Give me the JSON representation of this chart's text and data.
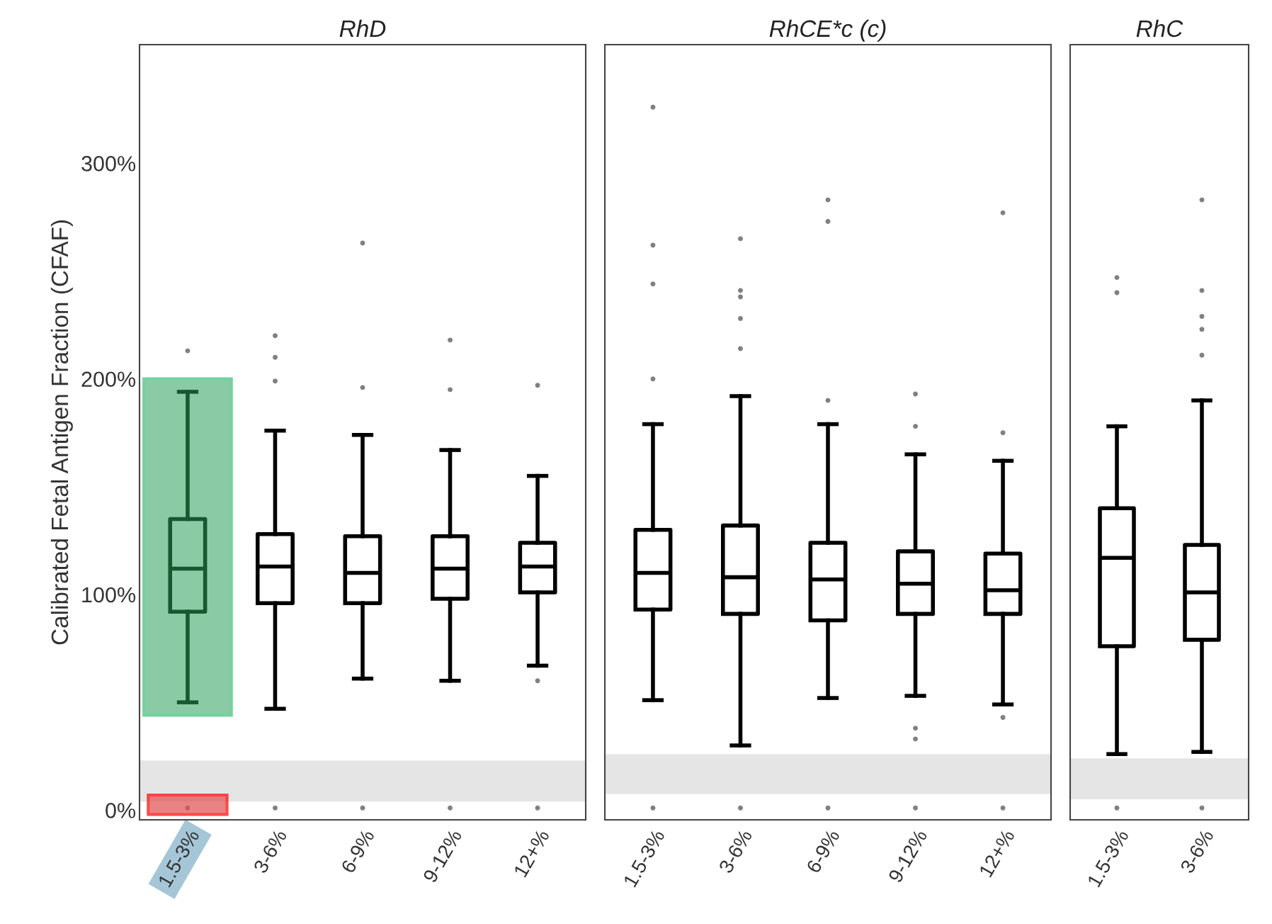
{
  "chart_data": [
    {
      "type": "box",
      "title": "RhD",
      "ylabel": "Calibrated Fetal Antigen Fraction (CFAF)",
      "categories": [
        "1.5-3%",
        "3-6%",
        "6-9%",
        "9-12%",
        "12+%"
      ],
      "boxes": [
        {
          "low": 50,
          "q1": 92,
          "median": 112,
          "q3": 135,
          "high": 194,
          "outliers": [
            213,
            1
          ]
        },
        {
          "low": 47,
          "q1": 96,
          "median": 113,
          "q3": 128,
          "high": 176,
          "outliers": [
            220,
            210,
            199,
            1
          ]
        },
        {
          "low": 61,
          "q1": 96,
          "median": 110,
          "q3": 127,
          "high": 174,
          "outliers": [
            263,
            196,
            1
          ]
        },
        {
          "low": 60,
          "q1": 98,
          "median": 112,
          "q3": 127,
          "high": 167,
          "outliers": [
            218,
            195,
            1
          ]
        },
        {
          "low": 67,
          "q1": 101,
          "median": 113,
          "q3": 124,
          "high": 155,
          "outliers": [
            197,
            60,
            1
          ]
        }
      ],
      "ylim": [
        -4.5,
        355
      ],
      "yticks": [
        {
          "value": 0,
          "label": "0%"
        },
        {
          "value": 100,
          "label": "100%"
        },
        {
          "value": 200,
          "label": "200%"
        },
        {
          "value": 300,
          "label": "300%"
        }
      ],
      "bands": [
        {
          "axis": "y",
          "from": 4,
          "to": 23,
          "color": "#e5e5e5"
        }
      ],
      "grid": false
    },
    {
      "type": "box",
      "title": "RhCE*c (c)",
      "categories": [
        "1.5-3%",
        "3-6%",
        "6-9%",
        "9-12%",
        "12+%"
      ],
      "boxes": [
        {
          "low": 51,
          "q1": 93,
          "median": 110,
          "q3": 130,
          "high": 179,
          "outliers": [
            326,
            262,
            244,
            200,
            1
          ]
        },
        {
          "low": 30,
          "q1": 91,
          "median": 108,
          "q3": 132,
          "high": 192,
          "outliers": [
            265,
            241,
            238,
            228,
            214,
            1
          ]
        },
        {
          "low": 52,
          "q1": 88,
          "median": 107,
          "q3": 124,
          "high": 179,
          "outliers": [
            283,
            273,
            190,
            1
          ]
        },
        {
          "low": 53,
          "q1": 91,
          "median": 105,
          "q3": 120,
          "high": 165,
          "outliers": [
            193,
            178,
            38,
            33,
            1
          ]
        },
        {
          "low": 49,
          "q1": 91,
          "median": 102,
          "q3": 119,
          "high": 162,
          "outliers": [
            277,
            175,
            43,
            1
          ]
        }
      ],
      "ylim": [
        -4.5,
        355
      ],
      "tick_labels": "x",
      "bands": [
        {
          "axis": "y",
          "from": 7.5,
          "to": 26,
          "color": "#e5e5e5"
        }
      ],
      "grid": false
    },
    {
      "type": "box",
      "title": "RhC",
      "categories": [
        "1.5-3%",
        "3-6%"
      ],
      "boxes": [
        {
          "low": 26,
          "q1": 76,
          "median": 117,
          "q3": 140,
          "high": 178,
          "outliers": [
            247,
            240,
            1
          ]
        },
        {
          "low": 27,
          "q1": 79,
          "median": 101,
          "q3": 123,
          "high": 190,
          "outliers": [
            283,
            241,
            229,
            223,
            211,
            1
          ]
        }
      ],
      "ylim": [
        -4.5,
        355
      ],
      "tick_labels": "x",
      "bands": [
        {
          "axis": "y",
          "from": 5,
          "to": 24,
          "color": "#e5e5e5"
        }
      ],
      "grid": false
    }
  ]
}
